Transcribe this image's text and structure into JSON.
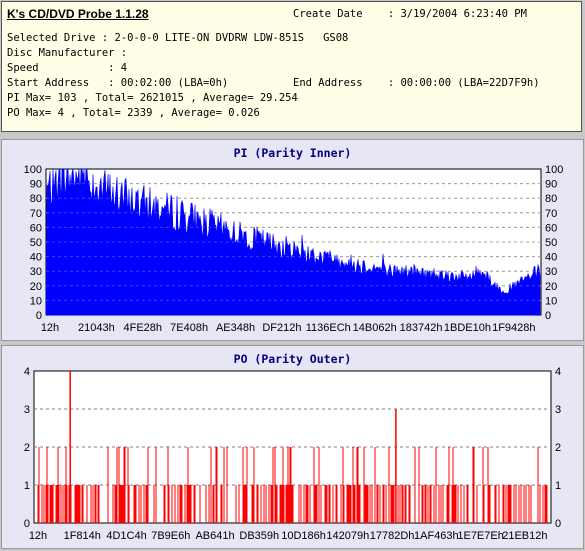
{
  "app": {
    "title": "K's CD/DVD Probe 1.1.28"
  },
  "info": {
    "create_date": "Create Date    : 3/19/2004 6:23:40 PM",
    "selected_drive": "Selected Drive : 2-0-0-0 LITE-ON DVDRW LDW-851S   GS08",
    "disc_manufacturer": "Disc Manufacturer :",
    "speed": "Speed           : 4",
    "start_address": "Start Address   : 00:02:00 (LBA=0h)",
    "end_address": "End Address    : 00:00:00 (LBA=22D7F9h)",
    "pi_summary": "PI Max= 103 , Total= 2621015 , Average= 29.254",
    "po_summary": "PO Max= 4 , Total= 2339 , Average= 0.026"
  },
  "colors": {
    "pi": "#0000ff",
    "po": "#ff0000",
    "panel_title": "#000080",
    "grid": "#808080"
  },
  "chart_data": [
    {
      "type": "area",
      "title": "PI (Parity Inner)",
      "xlabel": "",
      "ylabel": "",
      "ylim": [
        0,
        100
      ],
      "yticks": [
        0,
        10,
        20,
        30,
        40,
        50,
        60,
        70,
        80,
        90,
        100
      ],
      "xtick_labels": [
        "12h",
        "21043h",
        "4FE28h",
        "7E408h",
        "AE348h",
        "DF212h",
        "1136ECh",
        "14B062h",
        "183742h",
        "1BDE10h",
        "1F9428h"
      ],
      "grid": true,
      "series": [
        {
          "values": [
            86,
            88,
            91,
            93,
            95,
            96,
            92,
            89,
            86,
            84,
            82,
            80,
            78,
            77,
            75,
            74,
            73,
            71,
            70,
            68,
            67,
            65,
            63,
            62,
            60,
            58,
            57,
            55,
            54,
            52,
            51,
            49,
            48,
            47,
            45,
            44,
            43,
            41,
            40,
            39,
            38,
            37,
            36,
            35,
            34,
            33,
            32,
            31,
            30,
            30,
            30,
            29,
            29,
            28,
            28,
            28,
            27,
            27,
            26,
            26,
            29,
            30,
            24,
            18,
            17,
            19,
            22,
            25,
            28,
            30
          ]
        }
      ]
    },
    {
      "type": "bar",
      "title": "PO (Parity Outer)",
      "xlabel": "",
      "ylabel": "",
      "ylim": [
        0,
        4
      ],
      "yticks": [
        0,
        1,
        2,
        3,
        4
      ],
      "xtick_labels": [
        "12h",
        "1F814h",
        "4D1C4h",
        "7B9E6h",
        "AB641h",
        "DB359h",
        "10D186h",
        "142079h",
        "17782Dh",
        "1AF463h",
        "1E7E7Eh",
        "21EB12h"
      ],
      "grid": true,
      "series": [
        {
          "name": "",
          "max": 4,
          "peaks": [
            {
              "pos": 0.07,
              "value": 4
            },
            {
              "pos": 0.7,
              "value": 3
            }
          ]
        }
      ]
    }
  ]
}
